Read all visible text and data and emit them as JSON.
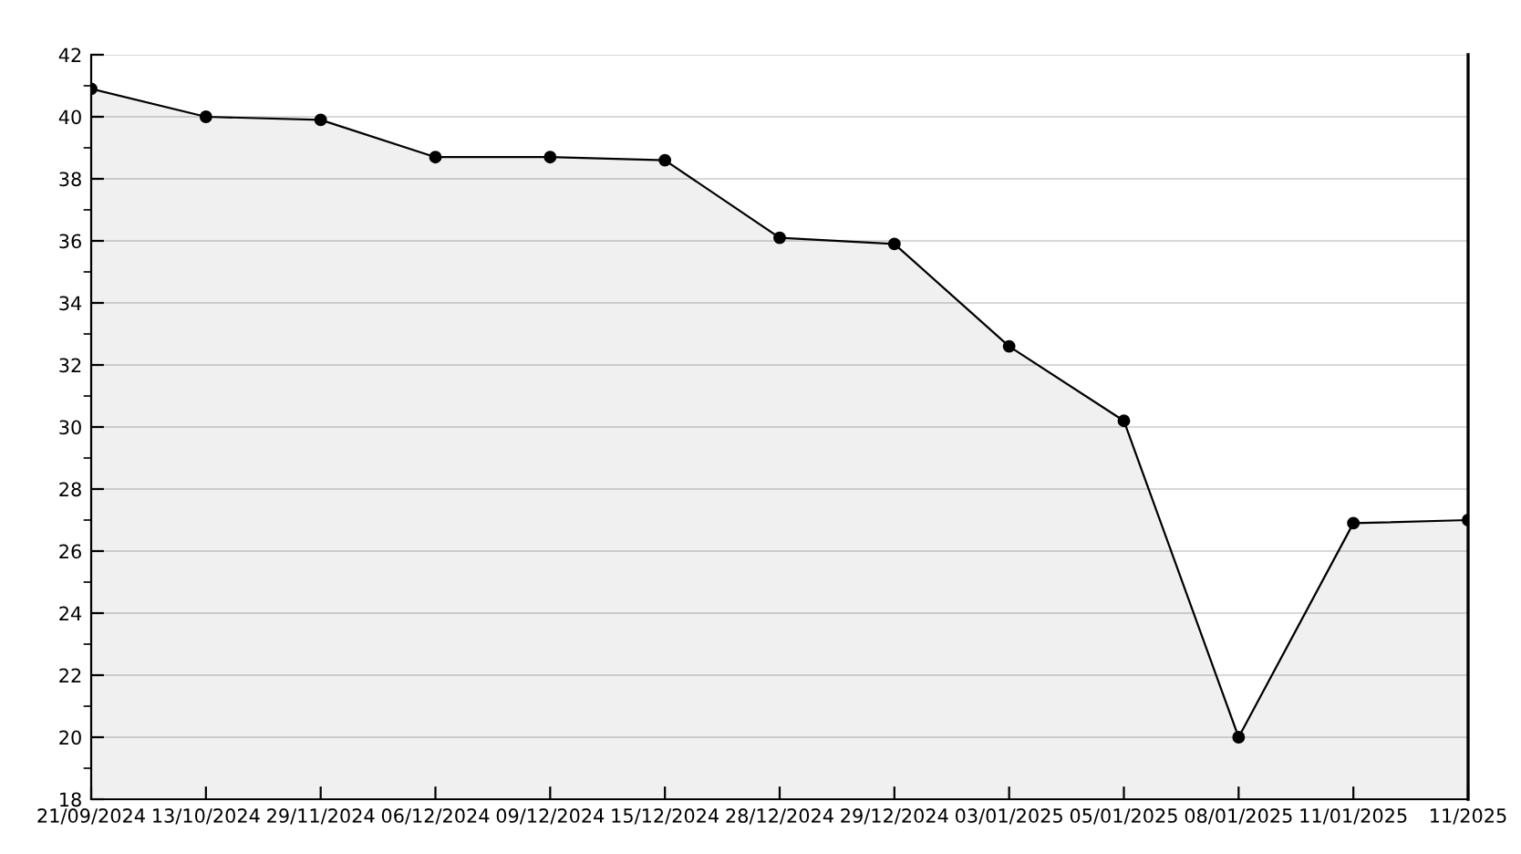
{
  "chart_data": {
    "type": "area",
    "categories": [
      "21/09/2024",
      "13/10/2024",
      "29/11/2024",
      "06/12/2024",
      "09/12/2024",
      "15/12/2024",
      "28/12/2024",
      "29/12/2024",
      "03/01/2025",
      "05/01/2025",
      "08/01/2025",
      "11/01/2025",
      "11/2025"
    ],
    "series": [
      {
        "color": "#000000",
        "values": [
          40.9,
          40.0,
          39.9,
          38.7,
          38.7,
          38.6,
          36.1,
          35.9,
          32.6,
          30.2,
          20.0,
          26.9,
          27.0
        ]
      }
    ],
    "ylim": [
      18,
      42
    ],
    "yticks": [
      18,
      20,
      22,
      24,
      26,
      28,
      30,
      32,
      34,
      36,
      38,
      40,
      42
    ],
    "grid": "y",
    "marker": "circle",
    "line_style": "solid",
    "legend": false
  }
}
